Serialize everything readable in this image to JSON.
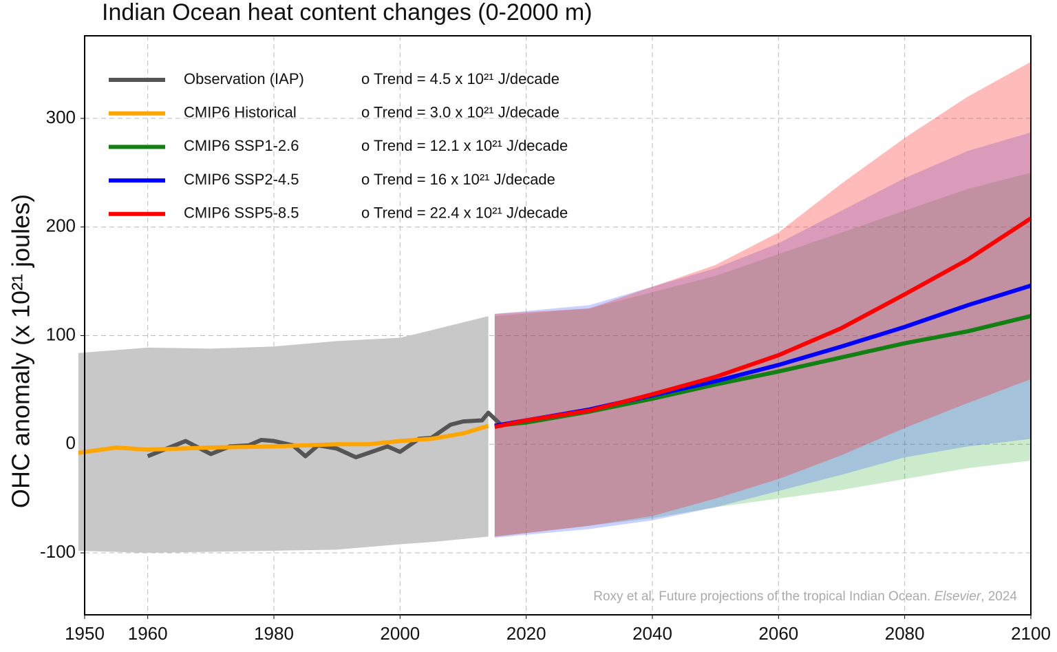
{
  "chart_data": {
    "type": "line",
    "title": "Indian Ocean heat content changes (0-2000 m)",
    "ylabel": "OHC anomaly (x 10²¹ joules)",
    "credit": [
      "Roxy et al. Future projections of the tropical Indian Ocean. ",
      "Elsevier",
      ", 2024"
    ],
    "xlim": [
      1950,
      2100
    ],
    "ylim": [
      -157,
      376
    ],
    "xticks": [
      1950,
      1960,
      1980,
      2000,
      2020,
      2040,
      2060,
      2080,
      2100
    ],
    "yticks": [
      -100,
      0,
      100,
      200,
      300
    ],
    "grid": true,
    "legend": "upper left",
    "series": [
      {
        "name": "Observation (IAP)",
        "trend": "o Trend = 4.5 x 10²¹ J/decade",
        "color": "#555555",
        "x": [
          1960,
          1963,
          1966,
          1970,
          1973,
          1976,
          1978,
          1980,
          1983,
          1985,
          1987,
          1990,
          1993,
          1995,
          1998,
          2000,
          2003,
          2005,
          2008,
          2010,
          2013,
          2014,
          2016
        ],
        "values": [
          -11,
          -4,
          3,
          -9,
          -2,
          -1,
          4,
          3,
          -1,
          -11,
          -1,
          -4,
          -12,
          -8,
          -2,
          -7,
          5,
          6,
          18,
          21,
          22,
          29,
          18
        ]
      },
      {
        "name": "CMIP6 Historical",
        "trend": "o Trend = 3.0 x 10²¹ J/decade",
        "color": "#ffa500",
        "x": [
          1949,
          1955,
          1960,
          1970,
          1980,
          1990,
          1995,
          2000,
          2005,
          2010,
          2014
        ],
        "values": [
          -8,
          -3,
          -5,
          -3,
          -2,
          0,
          0,
          3,
          5,
          10,
          17
        ],
        "band_x": [
          1949,
          1960,
          1970,
          1980,
          1990,
          2000,
          2005,
          2014
        ],
        "band_upper": [
          84,
          89,
          88,
          90,
          95,
          98,
          105,
          118
        ],
        "band_lower": [
          -98,
          -100,
          -99,
          -98,
          -97,
          -92,
          -90,
          -85
        ],
        "band_color": "#c8c8c8"
      },
      {
        "name": "CMIP6 SSP1-2.6",
        "trend": "o Trend = 12.1 x 10²¹ J/decade",
        "color": "#138013",
        "x": [
          2015,
          2020,
          2030,
          2040,
          2050,
          2060,
          2070,
          2080,
          2090,
          2100
        ],
        "values": [
          17,
          20,
          30,
          42,
          55,
          67,
          80,
          93,
          104,
          118
        ],
        "band_x": [
          2015,
          2030,
          2040,
          2050,
          2060,
          2070,
          2080,
          2090,
          2100
        ],
        "band_upper": [
          118,
          125,
          140,
          155,
          175,
          195,
          215,
          235,
          250
        ],
        "band_lower": [
          -85,
          -75,
          -68,
          -58,
          -50,
          -42,
          -32,
          -22,
          -15
        ],
        "band_color": "rgba(0,150,0,0.2)"
      },
      {
        "name": "CMIP6 SSP2-4.5",
        "trend": "o Trend = 16 x 10²¹ J/decade",
        "color": "#0000ff",
        "x": [
          2015,
          2020,
          2030,
          2040,
          2050,
          2060,
          2070,
          2080,
          2090,
          2100
        ],
        "values": [
          17,
          22,
          32,
          45,
          58,
          73,
          90,
          108,
          128,
          146
        ],
        "band_x": [
          2015,
          2030,
          2040,
          2050,
          2060,
          2070,
          2080,
          2090,
          2100
        ],
        "band_upper": [
          120,
          128,
          145,
          162,
          185,
          215,
          245,
          270,
          287
        ],
        "band_lower": [
          -86,
          -78,
          -70,
          -58,
          -43,
          -28,
          -12,
          -2,
          5
        ],
        "band_color": "rgba(60,90,255,0.28)"
      },
      {
        "name": "CMIP6 SSP5-8.5",
        "trend": "o Trend = 22.4 x 10²¹ J/decade",
        "color": "#ff0000",
        "x": [
          2015,
          2020,
          2030,
          2040,
          2050,
          2060,
          2070,
          2080,
          2090,
          2100
        ],
        "values": [
          16,
          22,
          31,
          46,
          62,
          82,
          107,
          138,
          170,
          208
        ],
        "band_x": [
          2015,
          2030,
          2040,
          2050,
          2060,
          2070,
          2080,
          2090,
          2100
        ],
        "band_upper": [
          120,
          125,
          145,
          165,
          195,
          240,
          282,
          320,
          352
        ],
        "band_lower": [
          -85,
          -75,
          -66,
          -50,
          -32,
          -10,
          15,
          38,
          60
        ],
        "band_color": "rgba(255,40,40,0.32)"
      }
    ]
  }
}
